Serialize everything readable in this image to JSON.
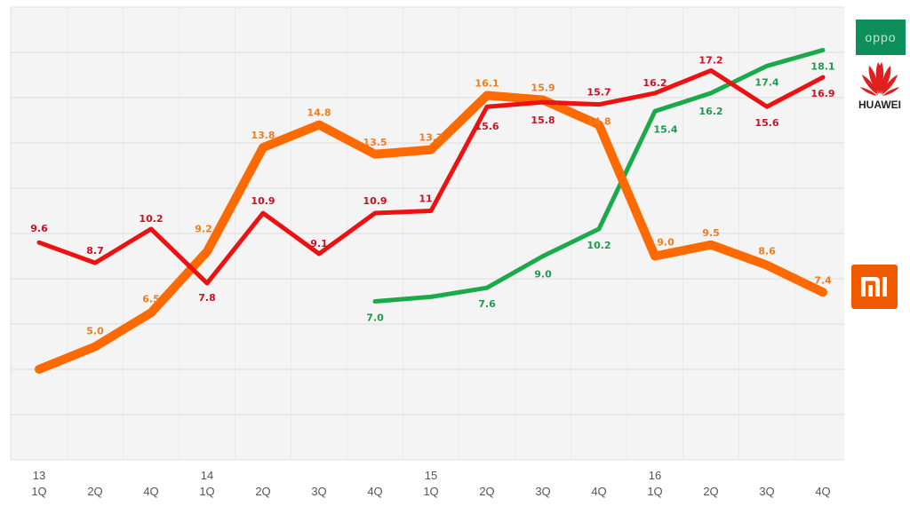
{
  "chart_data": {
    "type": "line",
    "title": "",
    "xlabel": "",
    "ylabel": "",
    "ylim": [
      0,
      20
    ],
    "grid": true,
    "legend": "logos at right",
    "categories": [
      {
        "year": "13",
        "q": "1Q"
      },
      {
        "year": "",
        "q": "2Q"
      },
      {
        "year": "",
        "q": "4Q"
      },
      {
        "year": "14",
        "q": "1Q"
      },
      {
        "year": "",
        "q": "2Q"
      },
      {
        "year": "",
        "q": "3Q"
      },
      {
        "year": "",
        "q": "4Q"
      },
      {
        "year": "15",
        "q": "1Q"
      },
      {
        "year": "",
        "q": "2Q"
      },
      {
        "year": "",
        "q": "3Q"
      },
      {
        "year": "",
        "q": "4Q"
      },
      {
        "year": "16",
        "q": "1Q"
      },
      {
        "year": "",
        "q": "2Q"
      },
      {
        "year": "",
        "q": "3Q"
      },
      {
        "year": "",
        "q": "4Q"
      }
    ],
    "series": [
      {
        "key": "oppo",
        "color": "#1aaa4a",
        "values": [
          null,
          null,
          null,
          null,
          null,
          null,
          7.0,
          7.2,
          7.6,
          9.0,
          10.2,
          15.4,
          16.2,
          17.4,
          18.1
        ],
        "labels": [
          "",
          "",
          "",
          "",
          "",
          "",
          "7.0",
          "",
          "7.6",
          "9.0",
          "10.2",
          "15.4",
          "16.2",
          "17.4",
          "18.1"
        ],
        "label_color": "#1e9a50"
      },
      {
        "key": "xiaomi",
        "color": "#ff6a00",
        "values": [
          4.0,
          5.0,
          6.5,
          9.2,
          13.8,
          14.8,
          13.5,
          13.7,
          16.1,
          15.9,
          14.8,
          9.0,
          9.5,
          8.6,
          7.4
        ],
        "labels": [
          "",
          "5.0",
          "6.5",
          "9.2",
          "13.8",
          "14.8",
          "13.5",
          "13.7",
          "16.1",
          "15.9",
          "14.8",
          "9.0",
          "9.5",
          "8.6",
          "7.4"
        ],
        "label_color": "#f07d1e"
      },
      {
        "key": "huawei",
        "color": "#ee1111",
        "values": [
          9.6,
          8.7,
          10.2,
          7.8,
          10.9,
          9.1,
          10.9,
          11,
          15.6,
          15.8,
          15.7,
          16.2,
          17.2,
          15.6,
          16.9
        ],
        "labels": [
          "9.6",
          "8.7",
          "10.2",
          "7.8",
          "10.9",
          "9.1",
          "10.9",
          "11",
          "15.6",
          "15.8",
          "15.7",
          "16.2",
          "17.2",
          "15.6",
          "16.9"
        ],
        "label_color": "#cc1122"
      }
    ]
  },
  "logos": {
    "oppo": "oppo",
    "huawei": "HUAWEI",
    "xiaomi": "mi"
  }
}
